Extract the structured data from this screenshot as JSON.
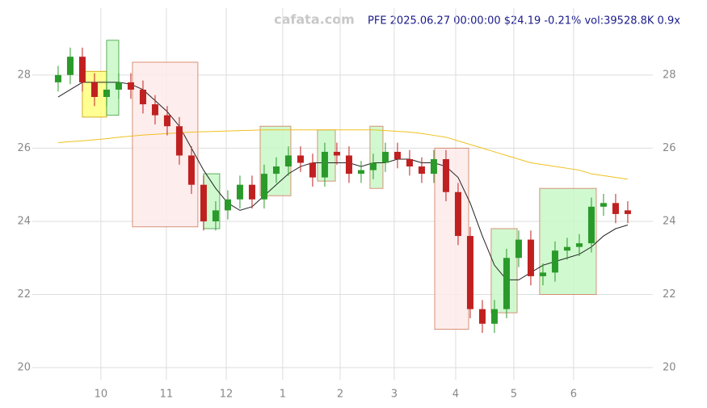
{
  "chart_data": {
    "type": "candlestick",
    "watermark": "cafata.com",
    "title": "PFE 2025.06.27 00:00:00 $24.19 -0.21% vol:39528.8K 0.9x",
    "x": [
      0,
      1,
      2,
      3,
      4,
      5,
      6,
      7,
      8,
      9,
      10,
      11,
      12,
      13,
      14,
      15,
      16,
      17,
      18,
      19,
      20,
      21,
      22,
      23,
      24,
      25,
      26,
      27,
      28,
      29,
      30,
      31,
      32,
      33,
      34,
      35,
      36,
      37,
      38,
      39,
      40,
      41,
      42,
      43,
      44,
      45,
      46,
      47
    ],
    "open": [
      27.8,
      28.0,
      28.5,
      27.8,
      27.4,
      27.6,
      27.8,
      27.6,
      27.2,
      26.9,
      26.6,
      25.8,
      25.0,
      24.0,
      24.3,
      24.6,
      25.0,
      24.6,
      25.3,
      25.5,
      25.8,
      25.6,
      25.2,
      25.9,
      25.8,
      25.3,
      25.4,
      25.6,
      25.9,
      25.7,
      25.5,
      25.3,
      25.7,
      24.8,
      23.6,
      21.6,
      21.2,
      21.6,
      23.0,
      23.5,
      22.5,
      22.6,
      23.2,
      23.3,
      23.4,
      24.4,
      24.5,
      24.3
    ],
    "high": [
      28.25,
      28.75,
      28.75,
      28.05,
      27.85,
      28.05,
      28.05,
      27.85,
      27.45,
      27.15,
      26.85,
      26.05,
      25.25,
      24.55,
      24.85,
      25.25,
      25.25,
      25.55,
      25.75,
      26.05,
      26.05,
      25.85,
      26.15,
      26.15,
      26.05,
      25.65,
      25.85,
      26.15,
      26.15,
      25.95,
      25.75,
      25.95,
      25.95,
      25.05,
      23.85,
      21.85,
      21.85,
      23.25,
      23.75,
      23.75,
      22.85,
      23.45,
      23.55,
      23.65,
      24.65,
      24.75,
      24.75,
      24.55
    ],
    "low": [
      27.55,
      27.75,
      27.55,
      27.15,
      27.15,
      27.35,
      27.35,
      26.95,
      26.65,
      26.35,
      25.55,
      24.75,
      23.75,
      23.75,
      24.05,
      24.35,
      24.35,
      24.35,
      25.05,
      25.25,
      25.35,
      24.95,
      24.95,
      25.55,
      25.05,
      25.05,
      25.15,
      25.35,
      25.45,
      25.25,
      25.05,
      25.05,
      24.55,
      23.35,
      21.35,
      20.95,
      20.95,
      21.35,
      22.75,
      22.25,
      22.25,
      22.35,
      22.95,
      23.05,
      23.15,
      24.15,
      23.95,
      23.95
    ],
    "close": [
      28.0,
      28.5,
      27.8,
      27.4,
      27.6,
      27.8,
      27.6,
      27.2,
      26.9,
      26.6,
      25.8,
      25.0,
      24.0,
      24.3,
      24.6,
      25.0,
      24.6,
      25.3,
      25.5,
      25.8,
      25.6,
      25.2,
      25.9,
      25.8,
      25.3,
      25.4,
      25.6,
      25.9,
      25.7,
      25.5,
      25.3,
      25.7,
      24.8,
      23.6,
      21.6,
      21.2,
      21.6,
      23.0,
      23.5,
      22.5,
      22.6,
      23.2,
      23.3,
      23.4,
      24.4,
      24.5,
      24.2,
      24.2
    ],
    "up_color": "#2a9a2a",
    "down_color": "#c02020",
    "series": [
      {
        "color": "#222222",
        "values": [
          27.4,
          27.6,
          27.8,
          27.8,
          27.8,
          27.8,
          27.75,
          27.6,
          27.3,
          27.0,
          26.6,
          26.0,
          25.4,
          24.9,
          24.5,
          24.3,
          24.4,
          24.7,
          25.0,
          25.3,
          25.5,
          25.6,
          25.6,
          25.6,
          25.6,
          25.5,
          25.6,
          25.6,
          25.7,
          25.7,
          25.6,
          25.6,
          25.5,
          25.2,
          24.5,
          23.6,
          22.8,
          22.4,
          22.4,
          22.6,
          22.8,
          22.9,
          23.0,
          23.1,
          23.3,
          23.6,
          23.8,
          23.9
        ]
      },
      {
        "color": "#f0c020",
        "values": [
          26.15,
          26.18,
          26.2,
          26.23,
          26.26,
          26.3,
          26.33,
          26.36,
          26.38,
          26.4,
          26.42,
          26.44,
          26.45,
          26.46,
          26.47,
          26.48,
          26.49,
          26.5,
          26.5,
          26.5,
          26.5,
          26.5,
          26.5,
          26.5,
          26.5,
          26.5,
          26.5,
          26.48,
          26.46,
          26.44,
          26.4,
          26.35,
          26.3,
          26.2,
          26.1,
          26.0,
          25.9,
          25.8,
          25.7,
          25.6,
          25.55,
          25.5,
          25.45,
          25.4,
          25.3,
          25.25,
          25.2,
          25.15
        ]
      }
    ],
    "zones": [
      {
        "x": [
          2,
          4
        ],
        "y": [
          26.85,
          28.1
        ],
        "color": "#ffff80",
        "edge": "#d0a000"
      },
      {
        "x": [
          4,
          5
        ],
        "y": [
          26.9,
          28.95
        ],
        "color": "#c8f8c8",
        "edge": "#40a040"
      },
      {
        "x": [
          6.13,
          11.53
        ],
        "y": [
          23.85,
          28.35
        ],
        "color": "#fdeaea",
        "edge": "#d08060"
      },
      {
        "x": [
          12,
          13.33
        ],
        "y": [
          23.8,
          25.3
        ],
        "color": "#c8f8c8",
        "edge": "#40a040"
      },
      {
        "x": [
          16.67,
          19.2
        ],
        "y": [
          24.7,
          26.6
        ],
        "color": "#c8f8c8",
        "edge": "#d08060"
      },
      {
        "x": [
          21.4,
          22.87
        ],
        "y": [
          25.1,
          26.5
        ],
        "color": "#c8f8c8",
        "edge": "#d08060"
      },
      {
        "x": [
          25.73,
          26.8
        ],
        "y": [
          24.9,
          26.6
        ],
        "color": "#c8f8c8",
        "edge": "#d08060"
      },
      {
        "x": [
          31.07,
          33.87
        ],
        "y": [
          21.05,
          26.0
        ],
        "color": "#fdeaea",
        "edge": "#d08060"
      },
      {
        "x": [
          35.73,
          37.87
        ],
        "y": [
          21.5,
          23.8
        ],
        "color": "#c8f8c8",
        "edge": "#d08060"
      },
      {
        "x": [
          39.73,
          44.4
        ],
        "y": [
          22.0,
          24.9
        ],
        "color": "#c8f8c8",
        "edge": "#d08060"
      }
    ],
    "xlim": [
      -2.13,
      49.07
    ],
    "ylim": [
      19.67,
      29.83
    ],
    "xticks": [
      {
        "value": 3.53,
        "label": "10"
      },
      {
        "value": 8.93,
        "label": "11"
      },
      {
        "value": 13.87,
        "label": "12"
      },
      {
        "value": 18.53,
        "label": "1"
      },
      {
        "value": 23.27,
        "label": "2"
      },
      {
        "value": 27.73,
        "label": "3"
      },
      {
        "value": 32.8,
        "label": "4"
      },
      {
        "value": 37.6,
        "label": "5"
      },
      {
        "value": 42.53,
        "label": "6"
      }
    ],
    "yticks": [
      20,
      22,
      24,
      26,
      28
    ],
    "grid": true
  }
}
